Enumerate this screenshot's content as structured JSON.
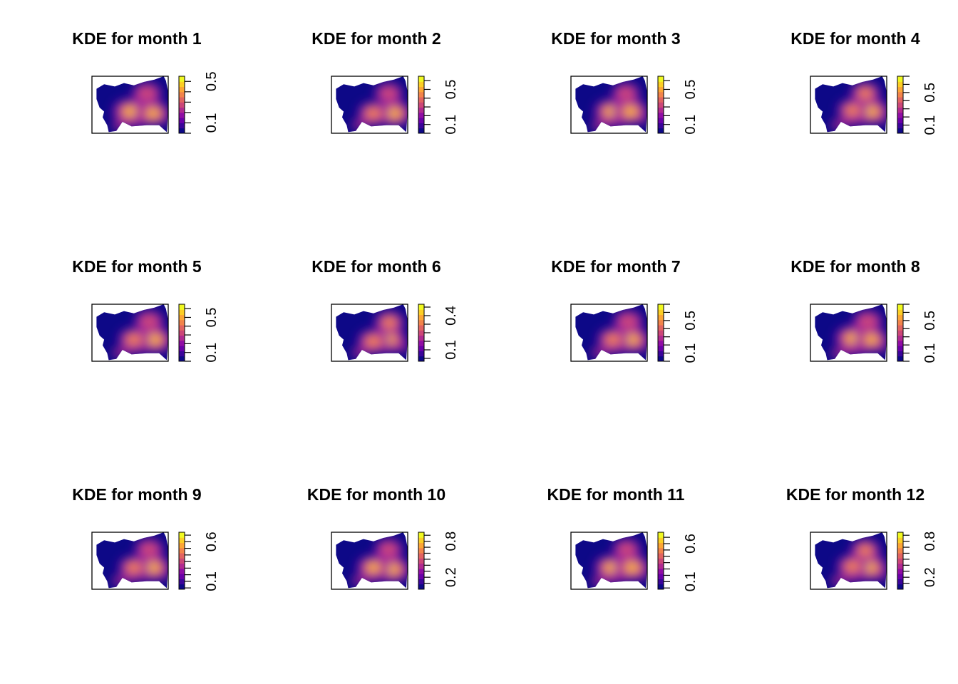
{
  "palette": [
    "#0d0887",
    "#3b049a",
    "#6a00a8",
    "#900da4",
    "#b12a90",
    "#cc4778",
    "#e16462",
    "#f2844b",
    "#fca636",
    "#fcce25",
    "#f0f921"
  ],
  "outline_color": "#000000",
  "chart_data": [
    {
      "type": "heatmap",
      "title": "KDE for month 1",
      "legend_ticks": [
        "0.1",
        "0.5"
      ],
      "legend_range": [
        0.0,
        0.55
      ],
      "hotspots": [
        {
          "x": 0.5,
          "y": 0.62,
          "w": 1.0
        },
        {
          "x": 0.8,
          "y": 0.65,
          "w": 0.9
        },
        {
          "x": 0.72,
          "y": 0.3,
          "w": 0.55
        }
      ]
    },
    {
      "type": "heatmap",
      "title": "KDE for month 2",
      "legend_ticks": [
        "0.1",
        "0.5"
      ],
      "legend_range": [
        0.0,
        0.65
      ],
      "hotspots": [
        {
          "x": 0.82,
          "y": 0.65,
          "w": 1.0
        },
        {
          "x": 0.55,
          "y": 0.65,
          "w": 0.7
        },
        {
          "x": 0.75,
          "y": 0.3,
          "w": 0.45
        }
      ]
    },
    {
      "type": "heatmap",
      "title": "KDE for month 3",
      "legend_ticks": [
        "0.1",
        "0.5"
      ],
      "legend_range": [
        0.0,
        0.65
      ],
      "hotspots": [
        {
          "x": 0.52,
          "y": 0.62,
          "w": 0.85
        },
        {
          "x": 0.78,
          "y": 0.62,
          "w": 1.0
        },
        {
          "x": 0.72,
          "y": 0.3,
          "w": 0.45
        }
      ]
    },
    {
      "type": "heatmap",
      "title": "KDE for month 4",
      "legend_ticks": [
        "0.1",
        "0.5"
      ],
      "legend_range": [
        0.0,
        0.7
      ],
      "hotspots": [
        {
          "x": 0.8,
          "y": 0.62,
          "w": 1.0
        },
        {
          "x": 0.55,
          "y": 0.6,
          "w": 0.65
        },
        {
          "x": 0.72,
          "y": 0.3,
          "w": 0.6
        }
      ]
    },
    {
      "type": "heatmap",
      "title": "KDE for month 5",
      "legend_ticks": [
        "0.1",
        "0.5"
      ],
      "legend_range": [
        0.0,
        0.65
      ],
      "hotspots": [
        {
          "x": 0.82,
          "y": 0.62,
          "w": 1.0
        },
        {
          "x": 0.55,
          "y": 0.62,
          "w": 0.7
        },
        {
          "x": 0.75,
          "y": 0.3,
          "w": 0.55
        }
      ]
    },
    {
      "type": "heatmap",
      "title": "KDE for month 6",
      "legend_ticks": [
        "0.1",
        "0.4"
      ],
      "legend_range": [
        0.0,
        0.5
      ],
      "hotspots": [
        {
          "x": 0.75,
          "y": 0.62,
          "w": 1.0
        },
        {
          "x": 0.55,
          "y": 0.65,
          "w": 0.75
        },
        {
          "x": 0.76,
          "y": 0.32,
          "w": 0.6
        }
      ]
    },
    {
      "type": "heatmap",
      "title": "KDE for month 7",
      "legend_ticks": [
        "0.1",
        "0.5"
      ],
      "legend_range": [
        0.0,
        0.7
      ],
      "hotspots": [
        {
          "x": 0.8,
          "y": 0.62,
          "w": 1.0
        },
        {
          "x": 0.55,
          "y": 0.62,
          "w": 0.7
        },
        {
          "x": 0.75,
          "y": 0.3,
          "w": 0.55
        }
      ]
    },
    {
      "type": "heatmap",
      "title": "KDE for month 8",
      "legend_ticks": [
        "0.1",
        "0.5"
      ],
      "legend_range": [
        0.0,
        0.7
      ],
      "hotspots": [
        {
          "x": 0.55,
          "y": 0.6,
          "w": 1.0
        },
        {
          "x": 0.8,
          "y": 0.62,
          "w": 0.85
        },
        {
          "x": 0.75,
          "y": 0.3,
          "w": 0.55
        }
      ]
    },
    {
      "type": "heatmap",
      "title": "KDE for month 9",
      "legend_ticks": [
        "0.1",
        "0.6"
      ],
      "legend_range": [
        0.0,
        0.72
      ],
      "hotspots": [
        {
          "x": 0.8,
          "y": 0.62,
          "w": 1.0
        },
        {
          "x": 0.55,
          "y": 0.62,
          "w": 0.65
        },
        {
          "x": 0.75,
          "y": 0.3,
          "w": 0.5
        }
      ]
    },
    {
      "type": "heatmap",
      "title": "KDE for month 10",
      "legend_ticks": [
        "0.2",
        "0.8"
      ],
      "legend_range": [
        0.0,
        0.95
      ],
      "hotspots": [
        {
          "x": 0.8,
          "y": 0.65,
          "w": 1.0
        },
        {
          "x": 0.55,
          "y": 0.62,
          "w": 0.85
        },
        {
          "x": 0.75,
          "y": 0.3,
          "w": 0.45
        }
      ]
    },
    {
      "type": "heatmap",
      "title": "KDE for month 11",
      "legend_ticks": [
        "0.1",
        "0.6"
      ],
      "legend_range": [
        0.0,
        0.75
      ],
      "hotspots": [
        {
          "x": 0.52,
          "y": 0.62,
          "w": 0.8
        },
        {
          "x": 0.8,
          "y": 0.62,
          "w": 1.0
        },
        {
          "x": 0.73,
          "y": 0.3,
          "w": 0.45
        }
      ]
    },
    {
      "type": "heatmap",
      "title": "KDE for month 12",
      "legend_ticks": [
        "0.2",
        "0.8"
      ],
      "legend_range": [
        0.0,
        0.95
      ],
      "hotspots": [
        {
          "x": 0.78,
          "y": 0.62,
          "w": 1.0
        },
        {
          "x": 0.55,
          "y": 0.6,
          "w": 0.7
        },
        {
          "x": 0.72,
          "y": 0.32,
          "w": 0.6
        }
      ]
    }
  ]
}
